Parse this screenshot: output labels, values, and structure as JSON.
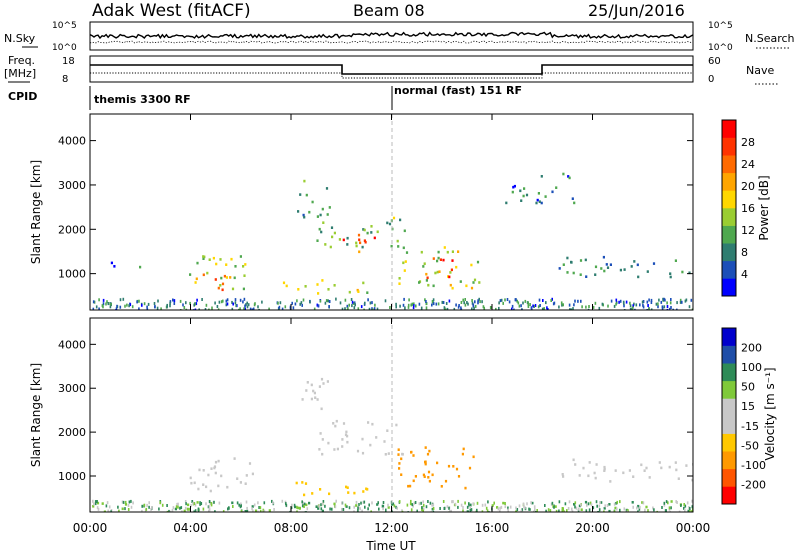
{
  "header": {
    "station": "Adak West (fitACF)",
    "beam": "Beam 08",
    "date": "25/Jun/2016"
  },
  "top_panels": {
    "nsky_label": "N.Sky",
    "nsearch_label": "N.Search",
    "nsky_ticks": [
      "10^5",
      "10^0"
    ],
    "nsearch_ticks": [
      "10^5",
      "10^0"
    ],
    "freq_label": "Freq.",
    "freq_unit": "[MHz]",
    "freq_ticks": [
      "18",
      "8"
    ],
    "nave_label": "Nave",
    "nave_ticks": [
      "60",
      "0"
    ],
    "cpid_label": "CPID",
    "cpid_segments": [
      {
        "name": "themis 3300 RF",
        "start_hour": 0,
        "end_hour": 12
      },
      {
        "name": "normal (fast) 151 RF",
        "start_hour": 12,
        "end_hour": 24
      }
    ]
  },
  "colors": {
    "power": [
      "#0000ff",
      "#1c4fb8",
      "#2f7d70",
      "#4fa84f",
      "#9acd32",
      "#ffd700",
      "#ffa500",
      "#ff6a00",
      "#ff3300",
      "#ff0000"
    ],
    "velocity": [
      "#0000cc",
      "#1f4ea8",
      "#2e8b57",
      "#7fc93a",
      "#c8c8c8",
      "#c8c8c8",
      "#ffc800",
      "#ff9900",
      "#ff5500",
      "#ff0000"
    ],
    "gray_scatter": "#c8c8c8"
  },
  "chart_data": [
    {
      "type": "heatmap",
      "panel": "power",
      "ylabel": "Slant Range [km]",
      "xlabel": "Time UT",
      "x_ticks": [
        "00:00",
        "04:00",
        "08:00",
        "12:00",
        "16:00",
        "20:00",
        "00:00"
      ],
      "y_ticks": [
        "1000",
        "2000",
        "3000",
        "4000"
      ],
      "xlim_hours": [
        0,
        24
      ],
      "ylim_km": [
        180,
        4600
      ],
      "colorbar_label": "Power [dB]",
      "colorbar_ticks": [
        "4",
        "8",
        "12",
        "16",
        "20",
        "24",
        "28"
      ],
      "colorbar_range": [
        0,
        30
      ],
      "echo_regions": [
        {
          "t0": 3.6,
          "t1": 6.5,
          "r0": 650,
          "r1": 1450,
          "v": 14
        },
        {
          "t0": 4.2,
          "t1": 5.6,
          "r0": 650,
          "r1": 1050,
          "v": 24
        },
        {
          "t0": 9.0,
          "t1": 12.5,
          "r0": 1500,
          "r1": 2300,
          "v": 12
        },
        {
          "t0": 10.0,
          "t1": 11.5,
          "r0": 1450,
          "r1": 1900,
          "v": 24
        },
        {
          "t0": 8.2,
          "t1": 9.5,
          "r0": 2300,
          "r1": 3300,
          "v": 10
        },
        {
          "t0": 12.2,
          "t1": 15.5,
          "r0": 700,
          "r1": 1700,
          "v": 14
        },
        {
          "t0": 13.2,
          "t1": 14.8,
          "r0": 900,
          "r1": 1400,
          "v": 24
        },
        {
          "t0": 18.2,
          "t1": 24.0,
          "r0": 900,
          "r1": 1400,
          "v": 8
        },
        {
          "t0": 0.5,
          "t1": 2.0,
          "r0": 1150,
          "r1": 1350,
          "v": 6
        },
        {
          "t0": 16.5,
          "t1": 19.5,
          "r0": 2600,
          "r1": 3300,
          "v": 6
        },
        {
          "t0": 7.5,
          "t1": 11.0,
          "r0": 550,
          "r1": 900,
          "v": 16
        }
      ]
    },
    {
      "type": "heatmap",
      "panel": "velocity",
      "ylabel": "Slant Range [km]",
      "xlabel": "Time UT",
      "x_ticks": [
        "00:00",
        "04:00",
        "08:00",
        "12:00",
        "16:00",
        "20:00",
        "00:00"
      ],
      "y_ticks": [
        "1000",
        "2000",
        "3000",
        "4000"
      ],
      "xlim_hours": [
        0,
        24
      ],
      "ylim_km": [
        180,
        4600
      ],
      "colorbar_label": "Velocity [m s⁻¹]",
      "colorbar_ticks": [
        "200",
        "100",
        "50",
        "15",
        "-15",
        "-50",
        "-100",
        "-200"
      ],
      "echo_regions": [
        {
          "t0": 3.6,
          "t1": 6.5,
          "r0": 650,
          "r1": 1450,
          "v": 0
        },
        {
          "t0": 9.0,
          "t1": 12.5,
          "r0": 1500,
          "r1": 2300,
          "v": 0
        },
        {
          "t0": 8.2,
          "t1": 9.5,
          "r0": 2300,
          "r1": 3300,
          "v": 0
        },
        {
          "t0": 12.2,
          "t1": 15.5,
          "r0": 700,
          "r1": 1700,
          "v": -60
        },
        {
          "t0": 7.5,
          "t1": 11.0,
          "r0": 550,
          "r1": 900,
          "v": -40
        },
        {
          "t0": 18.2,
          "t1": 24.0,
          "r0": 900,
          "r1": 1400,
          "v": 0
        },
        {
          "t0": 0.0,
          "t1": 24.0,
          "r0": 200,
          "r1": 450,
          "v": 30
        }
      ]
    }
  ]
}
